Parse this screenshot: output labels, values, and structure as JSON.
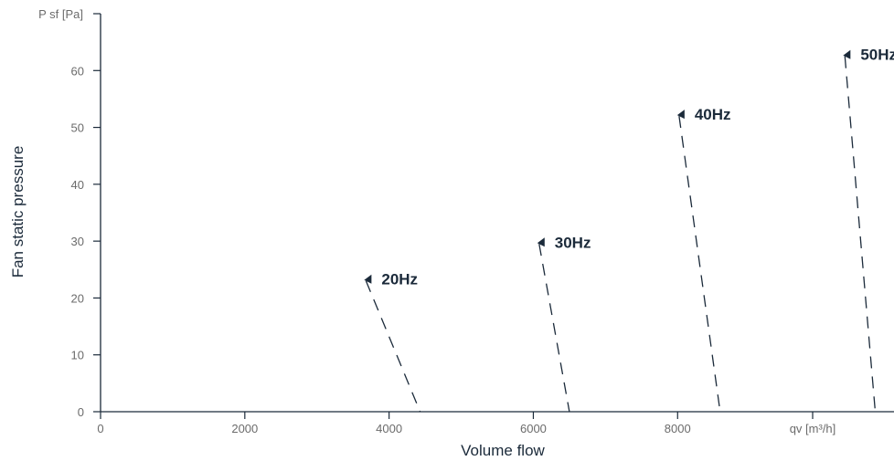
{
  "chart_data": {
    "type": "line",
    "xlabel": "Volume flow",
    "ylabel": "Fan static pressure",
    "x_unit": "qv [m³/h]",
    "y_unit": "P sf [Pa]",
    "xlim": [
      0,
      11000
    ],
    "ylim": [
      0,
      70
    ],
    "x_ticks": [
      0,
      2000,
      4000,
      6000,
      8000
    ],
    "y_ticks": [
      0,
      10,
      20,
      30,
      40,
      50,
      60
    ],
    "grid": false,
    "legend": "inline-labels",
    "color": "#1b2a3a",
    "series": [
      {
        "name": "20Hz",
        "points": [
          [
            3680,
            23
          ],
          [
            4430,
            0
          ]
        ]
      },
      {
        "name": "30Hz",
        "points": [
          [
            6080,
            29.5
          ],
          [
            6500,
            0
          ]
        ]
      },
      {
        "name": "40Hz",
        "points": [
          [
            8020,
            52
          ],
          [
            8590,
            0
          ]
        ]
      },
      {
        "name": "50Hz",
        "points": [
          [
            10320,
            62.5
          ],
          [
            10740,
            0
          ]
        ]
      }
    ]
  }
}
